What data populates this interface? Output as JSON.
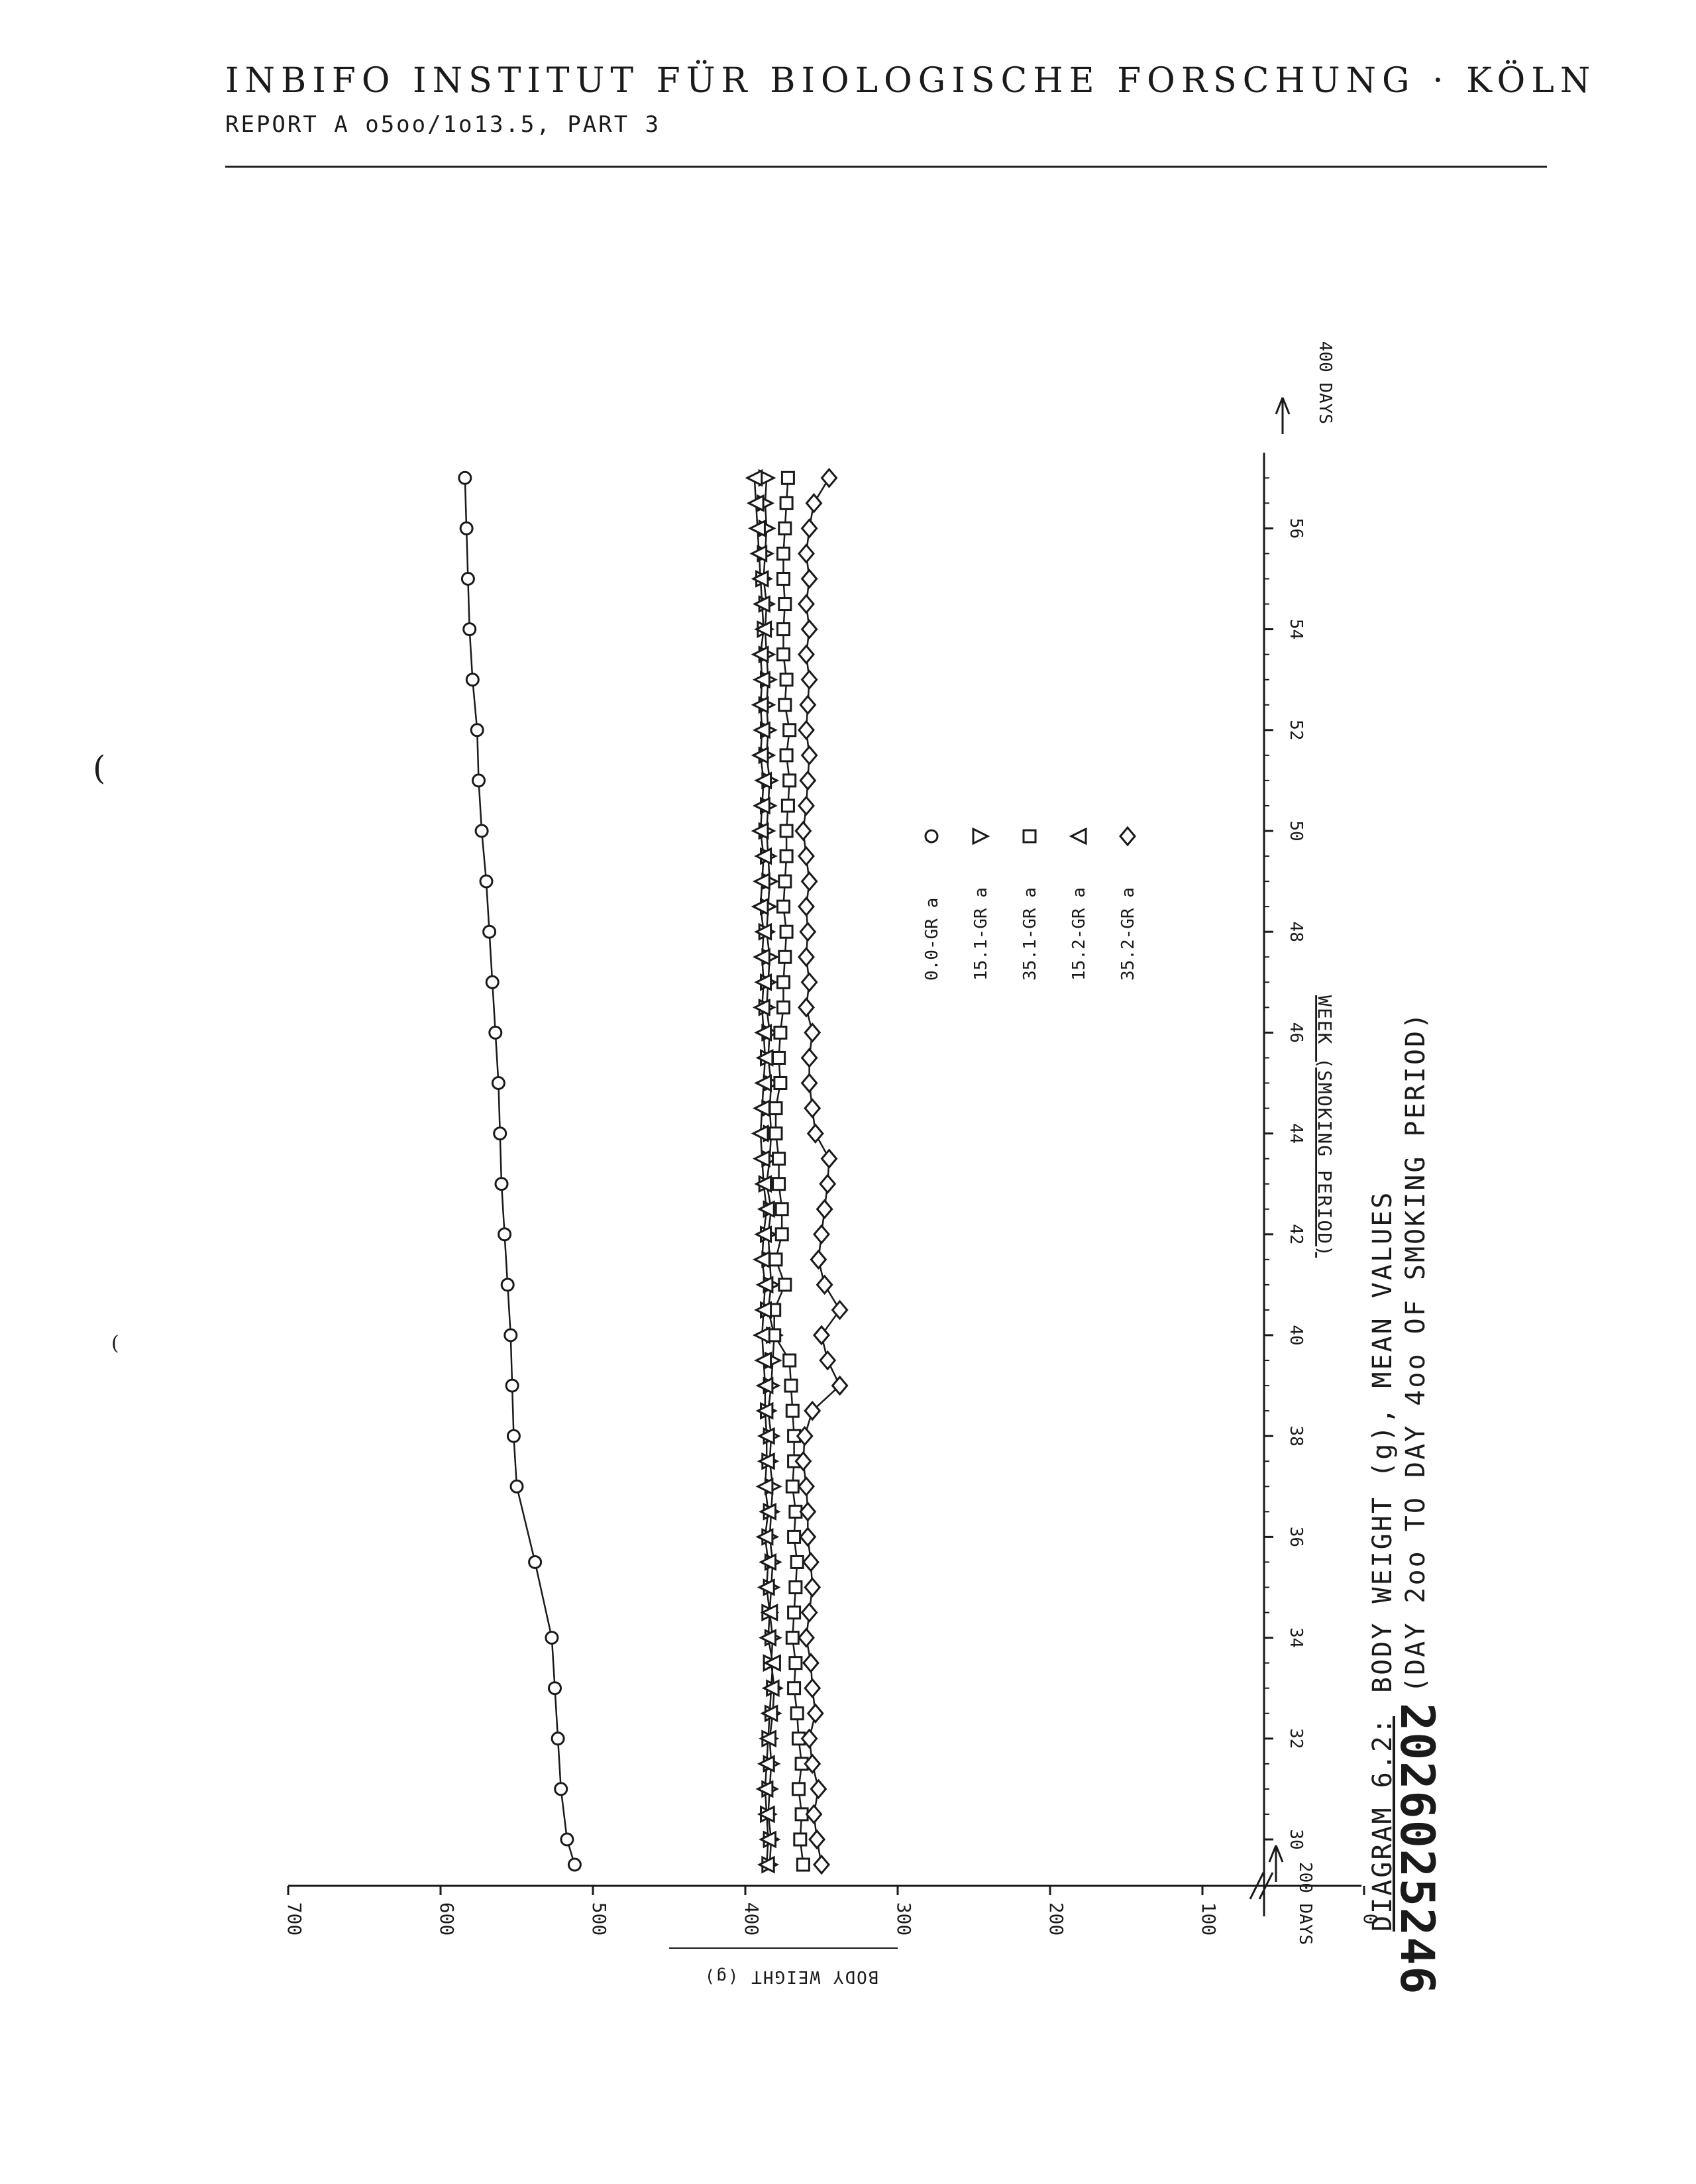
{
  "header": {
    "institute": "INBIFO INSTITUT FÜR BIOLOGISCHE FORSCHUNG · KÖLN",
    "report": "REPORT A o5oo/1o13.5, PART 3"
  },
  "document_number": "2026025246",
  "chart_data": {
    "type": "line",
    "orientation": "rotated-90-clockwise",
    "title": "DIAGRAM 6.2: BODY WEIGHT (g), MEAN VALUES",
    "title_label": "DIAGRAM 6.2:",
    "title_text": "BODY WEIGHT (g), MEAN VALUES",
    "subtitle": "(DAY 2oo TO DAY 4oo OF SMOKING PERIOD)",
    "xlabel": "WEEK (SMOKING PERIOD)",
    "ylabel": "BODY WEIGHT (g)",
    "xlim": [
      29,
      57.5
    ],
    "ylim": [
      0,
      700
    ],
    "y_axis_break": true,
    "x_ticks": [
      30,
      32,
      34,
      36,
      38,
      40,
      42,
      44,
      46,
      48,
      50,
      52,
      54,
      56
    ],
    "y_ticks": [
      0,
      100,
      200,
      300,
      400,
      500,
      600,
      700
    ],
    "x_start_label": "200 DAYS",
    "x_start_label_sub": "DAYS",
    "x_start_label_num": "30",
    "x_end_label": "400 DAYS",
    "legend_position": "center",
    "legend": [
      {
        "label": "0.0-GR a",
        "marker": "circle"
      },
      {
        "label": "15.1-GR a",
        "marker": "triangle-up"
      },
      {
        "label": "35.1-GR a",
        "marker": "square"
      },
      {
        "label": "15.2-GR a",
        "marker": "triangle-down"
      },
      {
        "label": "35.2-GR a",
        "marker": "diamond"
      }
    ],
    "x": [
      29.5,
      30.0,
      30.5,
      31.0,
      31.5,
      32.0,
      32.5,
      33.0,
      33.5,
      34.0,
      34.5,
      35.0,
      35.5,
      36.0,
      36.5,
      37.0,
      37.5,
      38.0,
      38.5,
      39.0,
      39.5,
      40.0,
      40.5,
      41.0,
      41.5,
      42.0,
      42.5,
      43.0,
      43.5,
      44.0,
      44.5,
      45.0,
      45.5,
      46.0,
      46.5,
      47.0,
      47.5,
      48.0,
      48.5,
      49.0,
      49.5,
      50.0,
      50.5,
      51.0,
      51.5,
      52.0,
      52.5,
      53.0,
      53.5,
      54.0,
      54.5,
      55.0,
      55.5,
      56.0,
      56.5,
      57.0
    ],
    "series": [
      {
        "name": "0.0-GR a",
        "marker": "circle",
        "x": [
          29.5,
          30.0,
          31.0,
          32.0,
          33.0,
          34.0,
          35.5,
          37.0,
          38.0,
          39.0,
          40.0,
          41.0,
          42.0,
          43.0,
          44.0,
          45.0,
          46.0,
          47.0,
          48.0,
          49.0,
          50.0,
          51.0,
          52.0,
          53.0,
          54.0,
          55.0,
          56.0,
          57.0
        ],
        "values": [
          512,
          517,
          521,
          523,
          525,
          527,
          538,
          550,
          552,
          553,
          554,
          556,
          558,
          560,
          561,
          562,
          564,
          566,
          568,
          570,
          573,
          575,
          576,
          579,
          581,
          582,
          583,
          584
        ]
      },
      {
        "name": "15.1-GR a",
        "marker": "triangle-up",
        "values": [
          384,
          383,
          385,
          384,
          383,
          384,
          382,
          381,
          383,
          382,
          384,
          383,
          382,
          384,
          383,
          382,
          384,
          383,
          385,
          383,
          382,
          381,
          385,
          383,
          384,
          385,
          383,
          386,
          384,
          383,
          384,
          383,
          385,
          384,
          386,
          385,
          384,
          386,
          385,
          384,
          385,
          386,
          385,
          384,
          386,
          385,
          386,
          385,
          386,
          387,
          386,
          388,
          387,
          386,
          387,
          386
        ]
      },
      {
        "name": "35.1-GR a",
        "marker": "square",
        "values": [
          362,
          364,
          363,
          365,
          363,
          365,
          366,
          368,
          367,
          369,
          368,
          367,
          366,
          368,
          367,
          369,
          368,
          368,
          369,
          370,
          371,
          381,
          381,
          374,
          380,
          376,
          376,
          378,
          378,
          380,
          380,
          377,
          378,
          377,
          375,
          375,
          374,
          373,
          375,
          374,
          373,
          373,
          372,
          371,
          373,
          371,
          374,
          373,
          375,
          375,
          374,
          375,
          375,
          374,
          373,
          372
        ]
      },
      {
        "name": "15.2-GR a",
        "marker": "triangle-down",
        "values": [
          386,
          385,
          386,
          387,
          386,
          385,
          384,
          383,
          382,
          385,
          384,
          386,
          385,
          387,
          385,
          387,
          386,
          386,
          387,
          387,
          388,
          389,
          388,
          387,
          389,
          388,
          386,
          388,
          389,
          390,
          389,
          388,
          387,
          388,
          389,
          388,
          389,
          388,
          390,
          389,
          388,
          390,
          389,
          388,
          390,
          389,
          390,
          389,
          390,
          388,
          389,
          390,
          391,
          392,
          393,
          394
        ]
      },
      {
        "name": "35.2-GR a",
        "marker": "diamond",
        "values": [
          350,
          353,
          355,
          352,
          356,
          358,
          354,
          356,
          357,
          360,
          358,
          356,
          357,
          359,
          359,
          360,
          362,
          361,
          356,
          338,
          346,
          350,
          338,
          348,
          352,
          350,
          348,
          346,
          345,
          354,
          356,
          358,
          358,
          356,
          360,
          358,
          360,
          359,
          360,
          358,
          360,
          362,
          360,
          359,
          358,
          360,
          359,
          358,
          360,
          358,
          360,
          358,
          360,
          358,
          355,
          345
        ]
      }
    ]
  }
}
